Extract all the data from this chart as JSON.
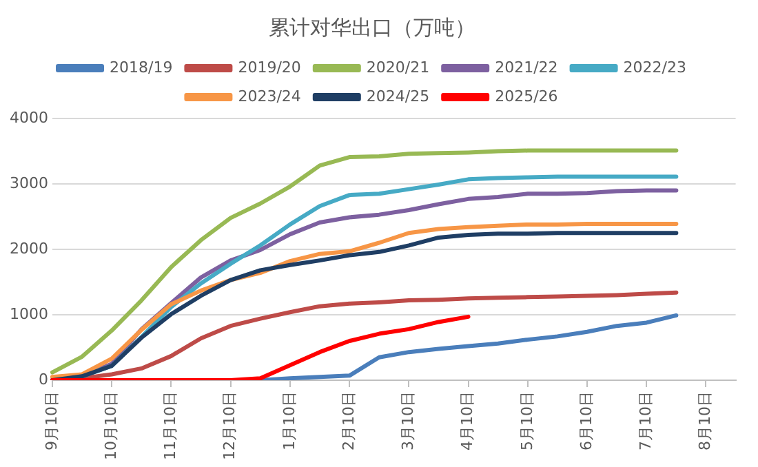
{
  "chart_data": {
    "type": "line",
    "title": "累计对华出口（万吨）",
    "categories": [
      "9月10日",
      null,
      "10月10日",
      null,
      "11月10日",
      null,
      "12月10日",
      null,
      "1月10日",
      null,
      "2月10日",
      null,
      "3月10日",
      null,
      "4月10日",
      null,
      "5月10日",
      null,
      "6月10日",
      null,
      "7月10日",
      null,
      "8月10日",
      null
    ],
    "series": [
      {
        "name": "2018/19",
        "color": "#4a7ebb",
        "values": [
          null,
          null,
          null,
          null,
          null,
          null,
          null,
          0,
          30,
          50,
          70,
          350,
          430,
          480,
          520,
          560,
          620,
          670,
          740,
          830,
          880,
          990,
          null,
          null
        ]
      },
      {
        "name": "2019/20",
        "color": "#be4b48",
        "values": [
          0,
          30,
          90,
          180,
          370,
          640,
          830,
          940,
          1040,
          1130,
          1170,
          1190,
          1220,
          1230,
          1250,
          1260,
          1270,
          1280,
          1290,
          1300,
          1320,
          1340,
          null,
          null
        ]
      },
      {
        "name": "2020/21",
        "color": "#98b954",
        "values": [
          120,
          360,
          760,
          1220,
          1730,
          2140,
          2480,
          2700,
          2960,
          3280,
          3410,
          3420,
          3460,
          3470,
          3480,
          3500,
          3510,
          3510,
          3510,
          3510,
          3510,
          3510,
          null,
          null
        ]
      },
      {
        "name": "2021/22",
        "color": "#7d60a0",
        "values": [
          0,
          60,
          250,
          780,
          1180,
          1570,
          1830,
          1990,
          2230,
          2410,
          2490,
          2530,
          2600,
          2690,
          2770,
          2800,
          2850,
          2850,
          2860,
          2890,
          2900,
          2900,
          null,
          null
        ]
      },
      {
        "name": "2022/23",
        "color": "#46aac5",
        "values": [
          0,
          60,
          220,
          660,
          1120,
          1480,
          1780,
          2060,
          2380,
          2660,
          2830,
          2850,
          2920,
          2990,
          3070,
          3090,
          3100,
          3110,
          3110,
          3110,
          3110,
          3110,
          null,
          null
        ]
      },
      {
        "name": "2023/24",
        "color": "#f79646",
        "values": [
          50,
          90,
          330,
          770,
          1160,
          1370,
          1530,
          1640,
          1820,
          1930,
          1970,
          2100,
          2250,
          2310,
          2340,
          2360,
          2380,
          2380,
          2390,
          2390,
          2390,
          2390,
          null,
          null
        ]
      },
      {
        "name": "2024/25",
        "color": "#1f3e64",
        "values": [
          0,
          60,
          220,
          650,
          1010,
          1290,
          1530,
          1680,
          1760,
          1830,
          1910,
          1960,
          2060,
          2180,
          2220,
          2240,
          2240,
          2250,
          2250,
          2250,
          2250,
          2250,
          null,
          null
        ]
      },
      {
        "name": "2025/26",
        "color": "#ff0000",
        "values": [
          0,
          0,
          0,
          0,
          0,
          0,
          0,
          30,
          230,
          430,
          600,
          710,
          780,
          890,
          970,
          null,
          null,
          null,
          null,
          null,
          null,
          null,
          null,
          null
        ]
      }
    ],
    "ylim": [
      0,
      4000
    ],
    "yticks": [
      0,
      1000,
      2000,
      3000,
      4000
    ],
    "grid": "y",
    "legend": "top",
    "marker": "none",
    "line_style": "solid"
  }
}
